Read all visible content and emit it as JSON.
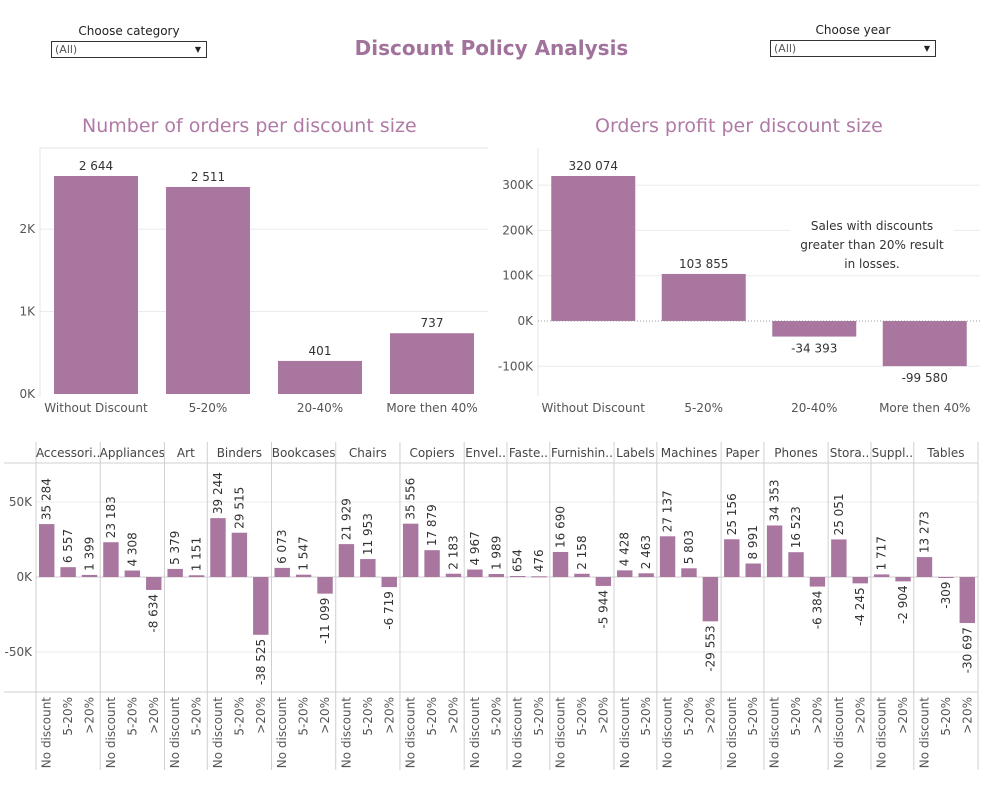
{
  "page": {
    "title": "Discount Policy Analysis",
    "category_filter": {
      "label": "Choose category",
      "value": "(All)"
    },
    "year_filter": {
      "label": "Choose year",
      "value": "(All)"
    }
  },
  "colors": {
    "bar": "#a8769f",
    "title": "#b07aa6",
    "grid": "#ebebeb",
    "axis": "#bbbbbb",
    "text": "#333333"
  },
  "chart_data": [
    {
      "type": "bar",
      "title": "Number of orders per discount size",
      "categories": [
        "Without Discount",
        "5-20%",
        "20-40%",
        "More then 40%"
      ],
      "values": [
        2644,
        2511,
        401,
        737
      ],
      "value_labels": [
        "2 644",
        "2 511",
        "401",
        "737"
      ],
      "yticks": [
        0,
        1000,
        2000
      ],
      "ytick_labels": [
        "0K",
        "1K",
        "2K"
      ],
      "ylim": [
        0,
        2644
      ],
      "grid": true
    },
    {
      "type": "bar",
      "title": "Orders profit per discount size",
      "categories": [
        "Without Discount",
        "5-20%",
        "20-40%",
        "More then 40%"
      ],
      "values": [
        320074,
        103855,
        -34393,
        -99580
      ],
      "value_labels": [
        "320 074",
        "103 855",
        "-34 393",
        "-99 580"
      ],
      "yticks": [
        -100000,
        0,
        100000,
        200000,
        300000
      ],
      "ytick_labels": [
        "-100K",
        "0K",
        "100K",
        "200K",
        "300K"
      ],
      "ylim": [
        -120000,
        320074
      ],
      "annotation": [
        "Sales with discounts",
        "greater than 20% result",
        "in losses."
      ],
      "grid": true
    },
    {
      "type": "bar",
      "title": "",
      "groups": [
        {
          "name": "Accessori..",
          "categories": [
            "No discount",
            "5-20%",
            ">20%"
          ],
          "values": [
            35284,
            6557,
            1399
          ],
          "value_labels": [
            "35 284",
            "6 557",
            "1 399"
          ]
        },
        {
          "name": "Appliances",
          "categories": [
            "No discount",
            "5-20%",
            ">20%"
          ],
          "values": [
            23183,
            4308,
            -8634
          ],
          "value_labels": [
            "23 183",
            "4 308",
            "-8 634"
          ]
        },
        {
          "name": "Art",
          "categories": [
            "No discount",
            "5-20%"
          ],
          "values": [
            5379,
            1151
          ],
          "value_labels": [
            "5 379",
            "1 151"
          ]
        },
        {
          "name": "Binders",
          "categories": [
            "No discount",
            "5-20%",
            ">20%"
          ],
          "values": [
            39244,
            29515,
            -38525
          ],
          "value_labels": [
            "39 244",
            "29 515",
            "-38 525"
          ]
        },
        {
          "name": "Bookcases",
          "categories": [
            "No discount",
            "5-20%",
            ">20%"
          ],
          "values": [
            6073,
            1547,
            -11099
          ],
          "value_labels": [
            "6 073",
            "1 547",
            "-11 099"
          ]
        },
        {
          "name": "Chairs",
          "categories": [
            "No discount",
            "5-20%",
            ">20%"
          ],
          "values": [
            21929,
            11953,
            -6719
          ],
          "value_labels": [
            "21 929",
            "11 953",
            "-6 719"
          ]
        },
        {
          "name": "Copiers",
          "categories": [
            "No discount",
            "5-20%",
            ">20%"
          ],
          "values": [
            35556,
            17879,
            2183
          ],
          "value_labels": [
            "35 556",
            "17 879",
            "2 183"
          ]
        },
        {
          "name": "Envel..",
          "categories": [
            "No discount",
            "5-20%"
          ],
          "values": [
            4967,
            1989
          ],
          "value_labels": [
            "4 967",
            "1 989"
          ]
        },
        {
          "name": "Faste..",
          "categories": [
            "No discount",
            "5-20%"
          ],
          "values": [
            654,
            476
          ],
          "value_labels": [
            "654",
            "476"
          ]
        },
        {
          "name": "Furnishin..",
          "categories": [
            "No discount",
            "5-20%",
            ">20%"
          ],
          "values": [
            16690,
            2158,
            -5944
          ],
          "value_labels": [
            "16 690",
            "2 158",
            "-5 944"
          ]
        },
        {
          "name": "Labels",
          "categories": [
            "No discount",
            "5-20%"
          ],
          "values": [
            4428,
            2463
          ],
          "value_labels": [
            "4 428",
            "2 463"
          ]
        },
        {
          "name": "Machines",
          "categories": [
            "No discount",
            "5-20%",
            ">20%"
          ],
          "values": [
            27137,
            5803,
            -29553
          ],
          "value_labels": [
            "27 137",
            "5 803",
            "-29 553"
          ]
        },
        {
          "name": "Paper",
          "categories": [
            "No discount",
            "5-20%"
          ],
          "values": [
            25156,
            8991
          ],
          "value_labels": [
            "25 156",
            "8 991"
          ]
        },
        {
          "name": "Phones",
          "categories": [
            "No discount",
            "5-20%",
            ">20%"
          ],
          "values": [
            34353,
            16523,
            -6384
          ],
          "value_labels": [
            "34 353",
            "16 523",
            "-6 384"
          ]
        },
        {
          "name": "Stora..",
          "categories": [
            "No discount",
            ">20%"
          ],
          "values": [
            25051,
            -4245
          ],
          "value_labels": [
            "25 051",
            "-4 245"
          ]
        },
        {
          "name": "Suppl..",
          "categories": [
            "No discount",
            ">20%"
          ],
          "values": [
            1717,
            -2904
          ],
          "value_labels": [
            "1 717",
            "-2 904"
          ]
        },
        {
          "name": "Tables",
          "categories": [
            "No discount",
            "5-20%",
            ">20%"
          ],
          "values": [
            13273,
            -309,
            -30697
          ],
          "value_labels": [
            "13 273",
            "-309",
            "-30 697"
          ]
        }
      ],
      "yticks": [
        -50000,
        0,
        50000
      ],
      "ytick_labels": [
        "-50K",
        "0K",
        "50K"
      ],
      "ylim": [
        -70000,
        72000
      ],
      "grid": true
    }
  ]
}
